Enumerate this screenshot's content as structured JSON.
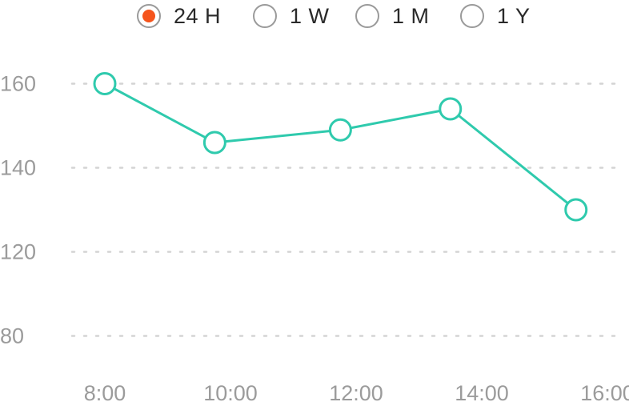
{
  "range_selector": {
    "options": [
      {
        "label": "24 H",
        "selected": true
      },
      {
        "label": "1 W",
        "selected": false
      },
      {
        "label": "1 M",
        "selected": false
      },
      {
        "label": "1 Y",
        "selected": false
      }
    ]
  },
  "colors": {
    "accent": "#f5541c",
    "line": "#2fcaad",
    "grid": "#d4d4d4",
    "tick_text": "#9b9b9b",
    "radio_border": "#9a9a9a"
  },
  "chart_data": {
    "type": "line",
    "title": "",
    "xlabel": "",
    "ylabel": "",
    "x_tick_labels": [
      "8:00",
      "10:00",
      "12:00",
      "14:00",
      "16:00"
    ],
    "x_ticks": [
      8,
      10,
      12,
      14,
      16
    ],
    "y_ticks": [
      160,
      140,
      120,
      80
    ],
    "y_tick_labels": [
      "160",
      "140",
      "120",
      "80"
    ],
    "grid": true,
    "grid_style": "dotted",
    "series": [
      {
        "x": [
          8.0,
          9.75,
          11.75,
          13.5,
          15.5
        ],
        "values": [
          160,
          146,
          149,
          154,
          130
        ]
      }
    ]
  }
}
